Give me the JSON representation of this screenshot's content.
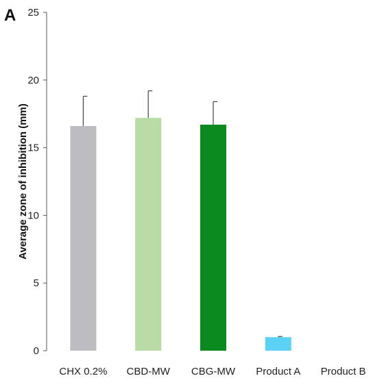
{
  "panel_label": "A",
  "chart_data": {
    "type": "bar",
    "categories": [
      "CHX 0.2%",
      "CBD-MW",
      "CBG-MW",
      "Product A",
      "Product B"
    ],
    "values": [
      16.6,
      17.2,
      16.7,
      1.0,
      0
    ],
    "errors": [
      2.2,
      2.0,
      1.7,
      0.05,
      0
    ],
    "colors": [
      "#bdbcc1",
      "#b9dba6",
      "#0a8a1e",
      "#5bd2f4",
      "#ffffff"
    ],
    "title": "",
    "xlabel": "",
    "ylabel": "Average zone of inhibition (mm)",
    "ylim": [
      0,
      25
    ],
    "yticks": [
      0,
      5,
      10,
      15,
      20,
      25
    ],
    "grid": false,
    "legend": "none"
  }
}
